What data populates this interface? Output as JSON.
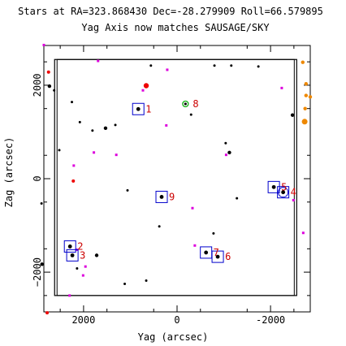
{
  "header": {
    "line1": "Stars at RA=323.868430 Dec=-28.279909 Roll=66.579895",
    "line2": "Yag Axis now matches SAUSAGE/SKY"
  },
  "chart_data": {
    "type": "scatter",
    "title": "Stars at RA=323.868430 Dec=-28.279909 Roll=66.579895",
    "subtitle": "Yag Axis now matches SAUSAGE/SKY",
    "xlabel": "Yag (arcsec)",
    "ylabel": "Zag (arcsec)",
    "xlim": [
      2850,
      -2850
    ],
    "ylim": [
      -2850,
      2850
    ],
    "x_ticks": [
      2000,
      0,
      -2000
    ],
    "x_tick_labels": [
      "2000",
      "0",
      "-2000"
    ],
    "y_ticks": [
      2000,
      0,
      -2000
    ],
    "y_tick_labels": [
      "2000",
      "0",
      "−2000"
    ],
    "grid": false,
    "legend": "none",
    "colors": {
      "star": "#000000",
      "box": "#0000cc",
      "label": "#cc0000",
      "magenta": "#dd00dd",
      "red": "#ee0000",
      "orange": "#ee8800",
      "green": "#00aa00"
    },
    "field_of_view": {
      "yag": [
        2620,
        -2560
      ],
      "zag": [
        -2500,
        2550
      ]
    },
    "acquisition_stars": [
      {
        "id": "1",
        "yag": 830,
        "zag": 1490
      },
      {
        "id": "2",
        "yag": 2290,
        "zag": -1450
      },
      {
        "id": "3",
        "yag": 2240,
        "zag": -1640
      },
      {
        "id": "4",
        "yag": -2270,
        "zag": -290
      },
      {
        "id": "5",
        "yag": -2070,
        "zag": -180
      },
      {
        "id": "6",
        "yag": -870,
        "zag": -1670
      },
      {
        "id": "7",
        "yag": -620,
        "zag": -1580
      },
      {
        "id": "8",
        "yag": -180,
        "zag": 1600
      },
      {
        "id": "9",
        "yag": 330,
        "zag": -390
      }
    ],
    "field_stars": [
      {
        "yag": 2730,
        "zag": 1980
      },
      {
        "yag": 2250,
        "zag": 1640
      },
      {
        "yag": 2630,
        "zag": 1890
      },
      {
        "yag": 2080,
        "zag": 1210
      },
      {
        "yag": 1320,
        "zag": 1150
      },
      {
        "yag": 1530,
        "zag": 1080
      },
      {
        "yag": 1810,
        "zag": 1030
      },
      {
        "yag": 2520,
        "zag": 610
      },
      {
        "yag": -300,
        "zag": 1370
      },
      {
        "yag": -1040,
        "zag": 760
      },
      {
        "yag": -1120,
        "zag": 560
      },
      {
        "yag": 1060,
        "zag": -250
      },
      {
        "yag": -1280,
        "zag": -420
      },
      {
        "yag": 380,
        "zag": -1020
      },
      {
        "yag": -780,
        "zag": -1170
      },
      {
        "yag": 1720,
        "zag": -1640
      },
      {
        "yag": 2900,
        "zag": -530
      },
      {
        "yag": 2140,
        "zag": -1920
      },
      {
        "yag": 1120,
        "zag": -2250
      },
      {
        "yag": 660,
        "zag": -2180
      },
      {
        "yag": 2890,
        "zag": -1830
      },
      {
        "yag": 560,
        "zag": 2420
      },
      {
        "yag": -800,
        "zag": 2420
      },
      {
        "yag": -1160,
        "zag": 2420
      },
      {
        "yag": -1740,
        "zag": 2400
      },
      {
        "yag": -2470,
        "zag": 1360
      }
    ],
    "magenta_stars": [
      {
        "yag": 2850,
        "zag": 2860
      },
      {
        "yag": 1690,
        "zag": 2520
      },
      {
        "yag": 730,
        "zag": 1890
      },
      {
        "yag": 210,
        "zag": 2330
      },
      {
        "yag": 230,
        "zag": 1140
      },
      {
        "yag": 1300,
        "zag": 510
      },
      {
        "yag": 1780,
        "zag": 560
      },
      {
        "yag": -1050,
        "zag": 510
      },
      {
        "yag": 2210,
        "zag": 280
      },
      {
        "yag": -2240,
        "zag": 1940
      },
      {
        "yag": -2490,
        "zag": -460
      },
      {
        "yag": 2150,
        "zag": -1520
      },
      {
        "yag": -330,
        "zag": -630
      },
      {
        "yag": -380,
        "zag": -1430
      },
      {
        "yag": 1960,
        "zag": -1880
      },
      {
        "yag": 2010,
        "zag": -2070
      },
      {
        "yag": -2700,
        "zag": -1160
      },
      {
        "yag": 2300,
        "zag": -2500
      }
    ],
    "red_stars": [
      {
        "yag": 2750,
        "zag": 2280
      },
      {
        "yag": 660,
        "zag": 1990
      },
      {
        "yag": 2220,
        "zag": -50
      },
      {
        "yag": 2780,
        "zag": -2870
      }
    ],
    "orange_stars": [
      {
        "yag": -2690,
        "zag": 2490
      },
      {
        "yag": -2760,
        "zag": 2030
      },
      {
        "yag": -2760,
        "zag": 1780
      },
      {
        "yag": -2740,
        "zag": 1500
      },
      {
        "yag": -2730,
        "zag": 1220
      },
      {
        "yag": -2850,
        "zag": 1750
      }
    ]
  }
}
